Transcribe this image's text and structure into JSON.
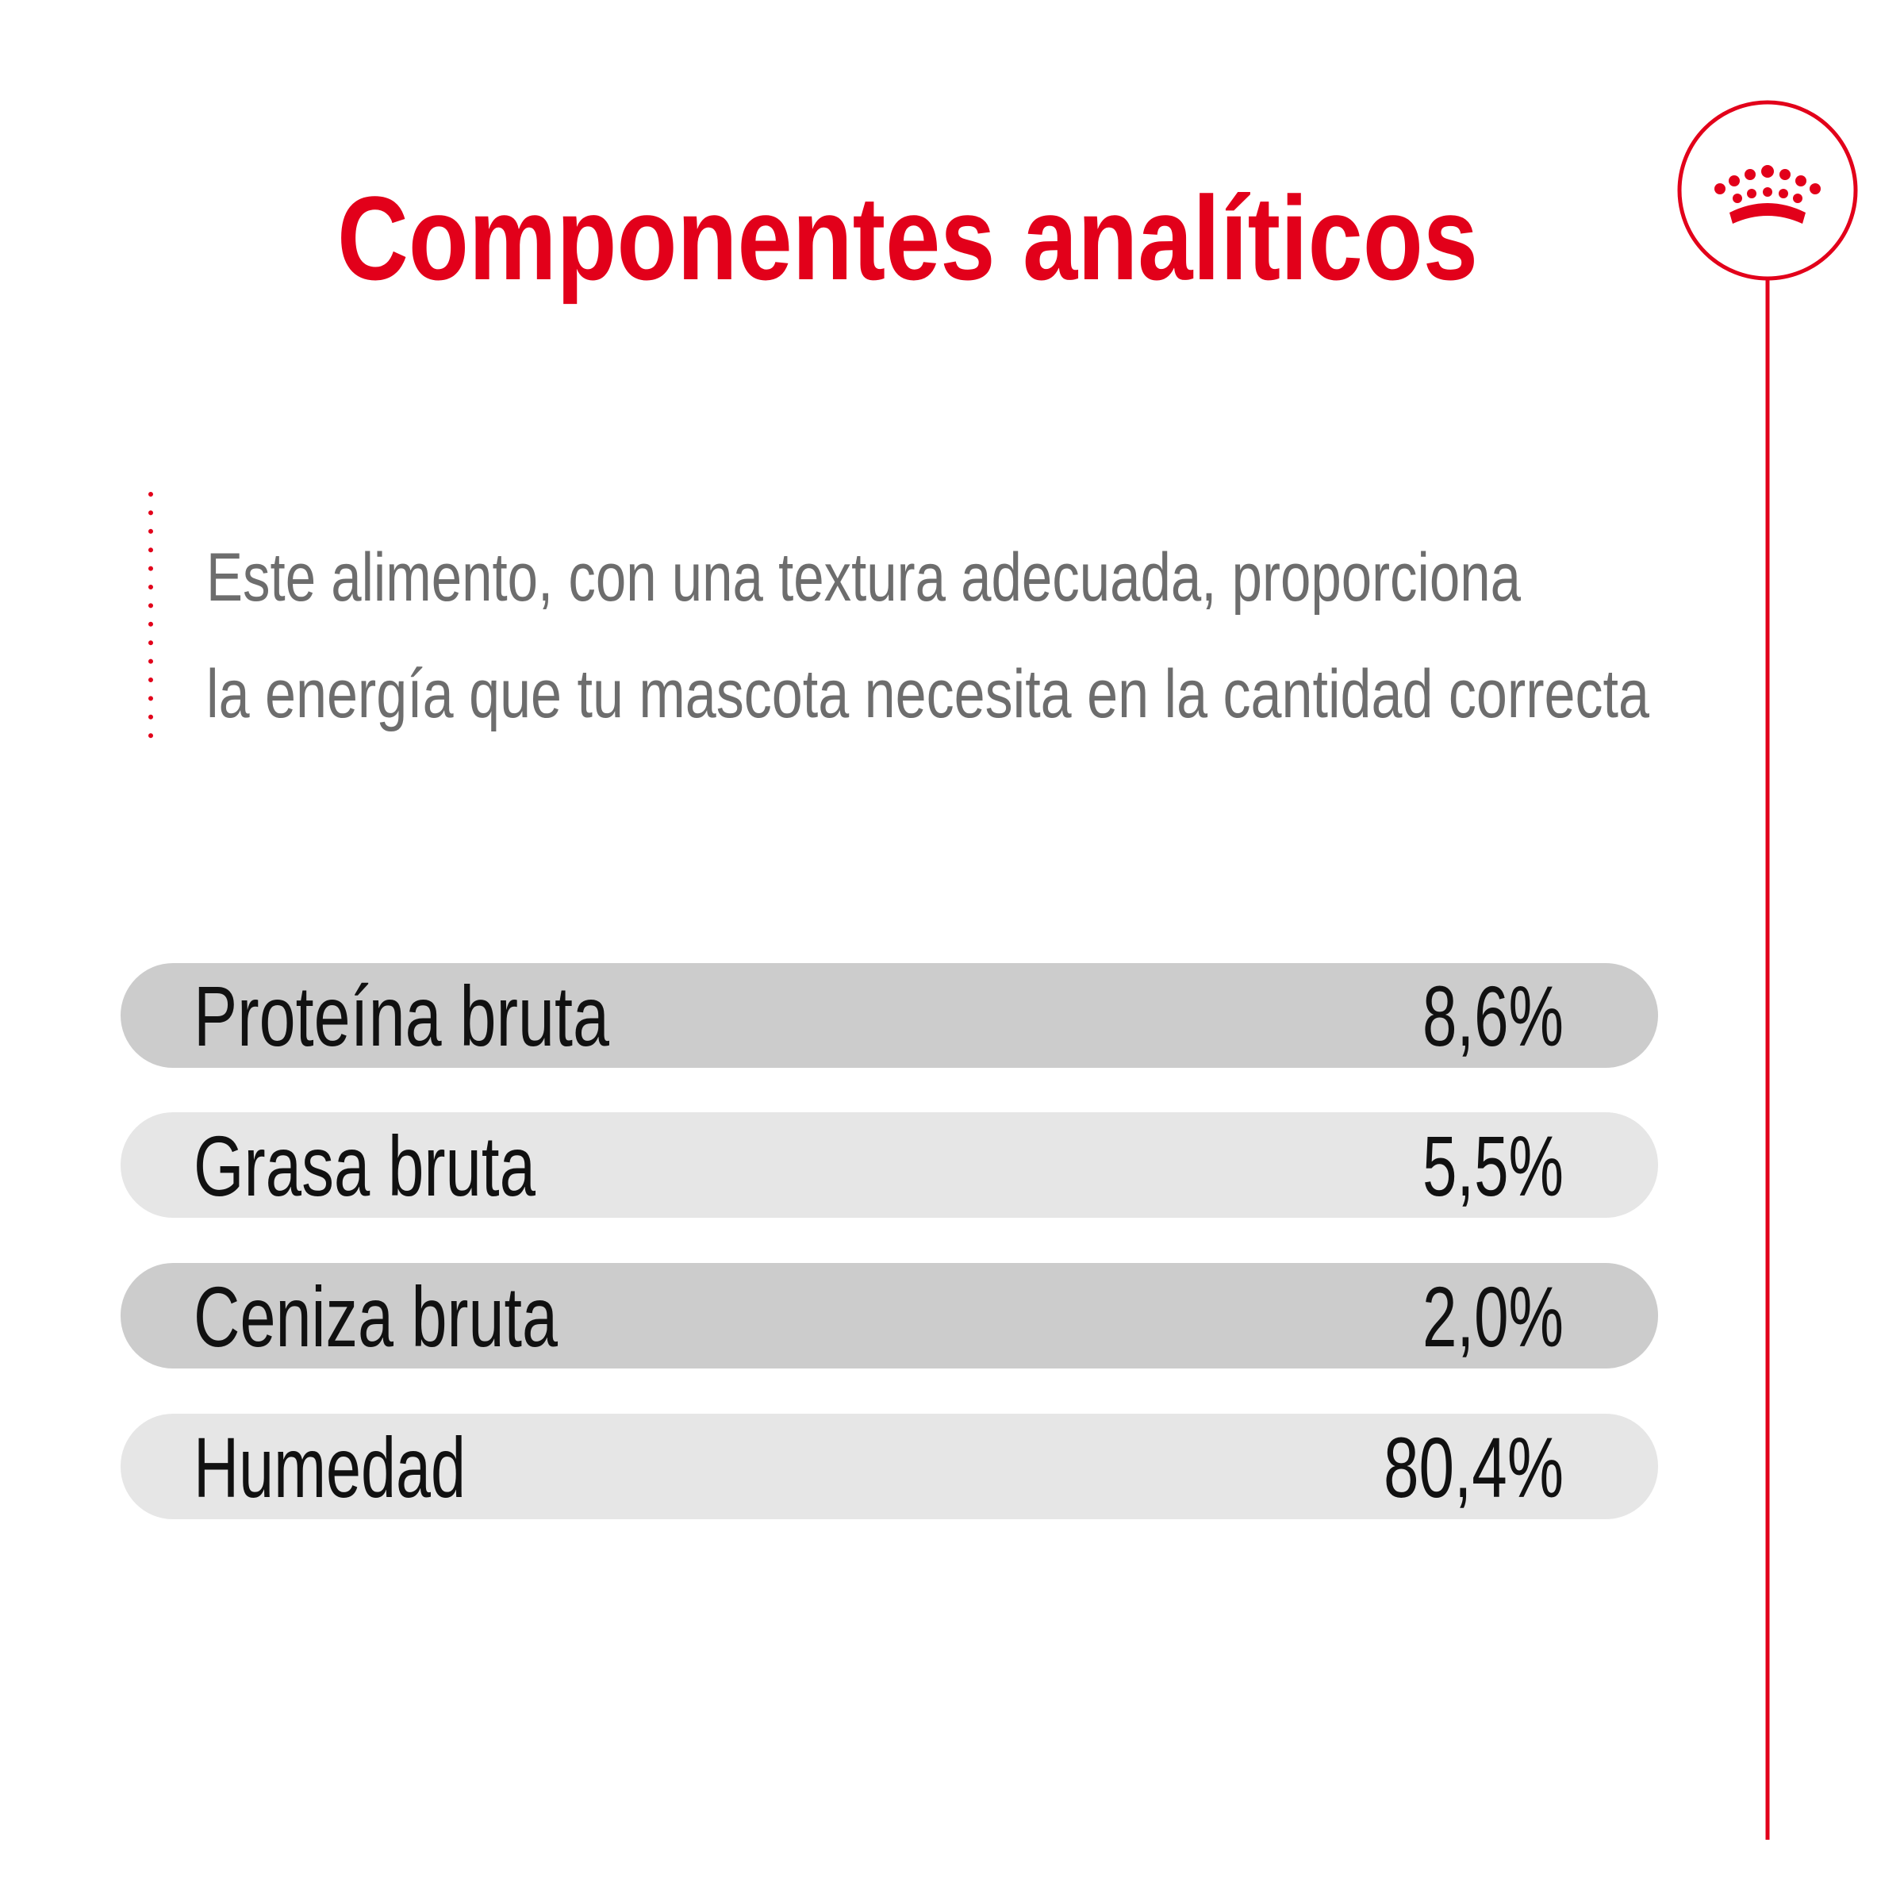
{
  "header": {
    "title": "Componentes analíticos"
  },
  "description": {
    "lines": [
      "Este alimento, con una textura adecuada, proporciona",
      "la energía que tu mascota necesita en la cantidad correcta"
    ]
  },
  "table": {
    "rows": [
      {
        "label": "Proteína bruta",
        "value": "8,6%"
      },
      {
        "label": "Grasa bruta",
        "value": "5,5%"
      },
      {
        "label": "Ceniza bruta",
        "value": "2,0%"
      },
      {
        "label": "Humedad",
        "value": "80,4%"
      }
    ]
  }
}
